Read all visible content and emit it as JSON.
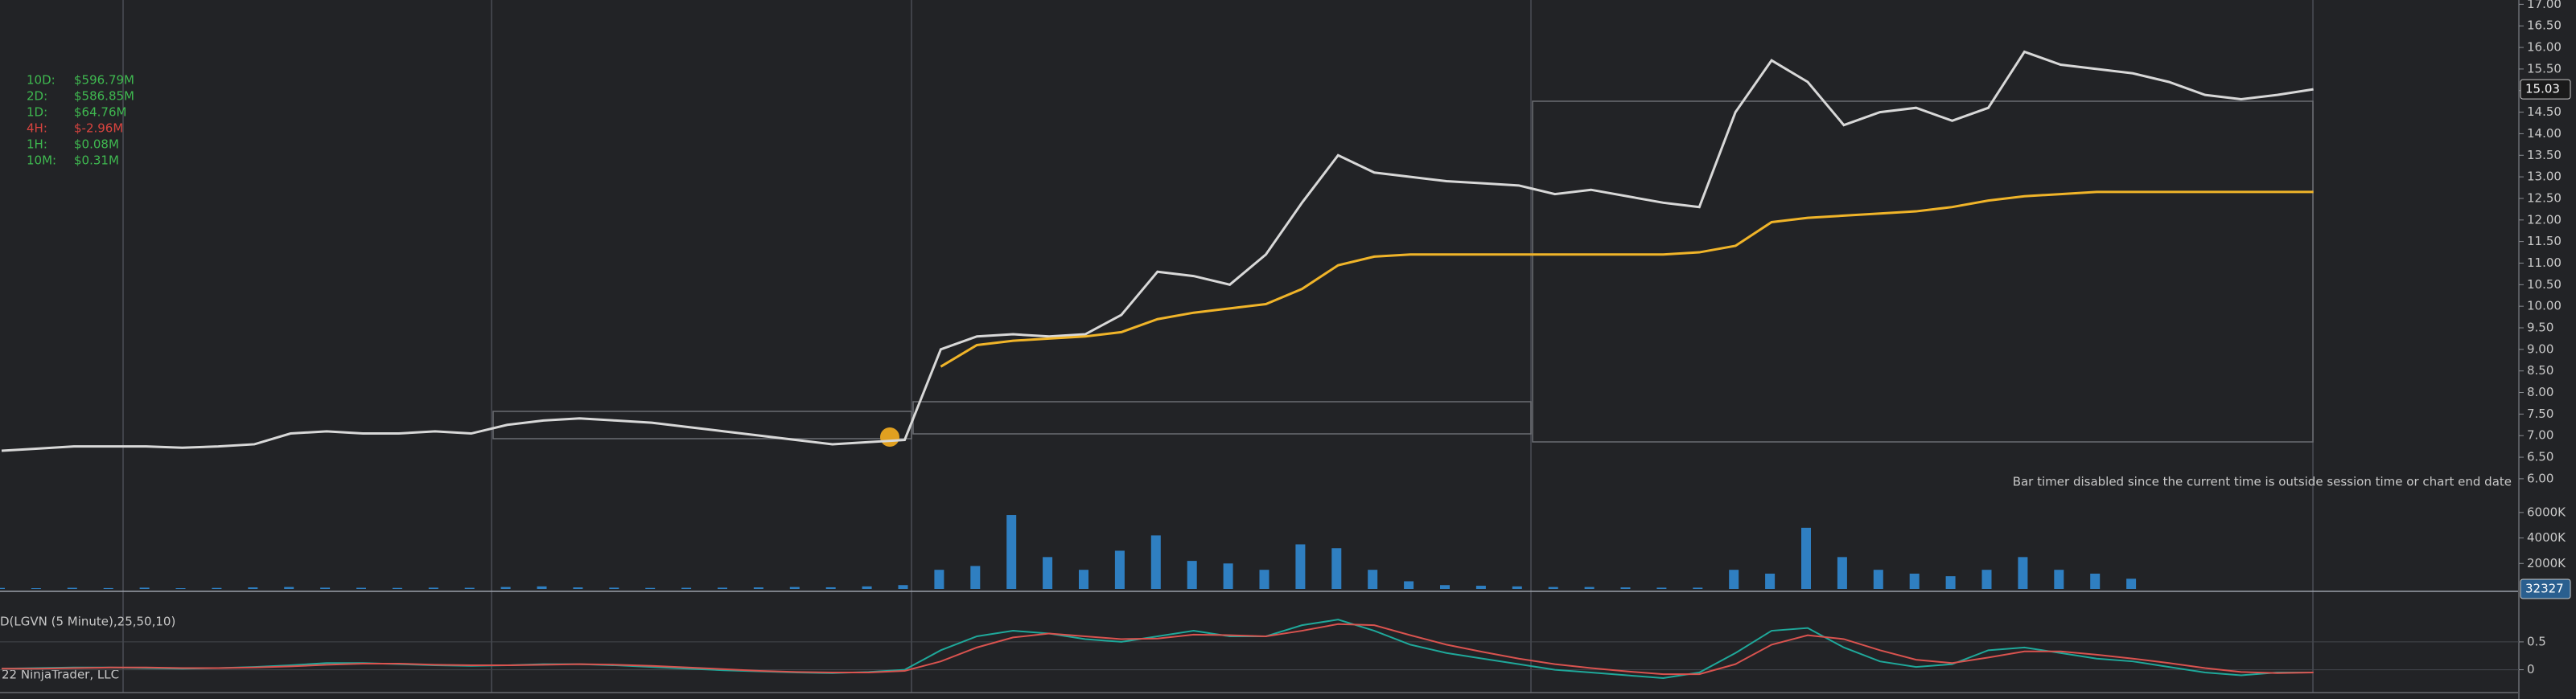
{
  "flows": [
    {
      "label": "10D:",
      "value": "$596.79M",
      "color": "#3fb950"
    },
    {
      "label": "2D:",
      "value": "$586.85M",
      "color": "#3fb950"
    },
    {
      "label": "1D:",
      "value": "$64.76M",
      "color": "#3fb950"
    },
    {
      "label": "4H:",
      "value": "$-2.96M",
      "color": "#d9443f"
    },
    {
      "label": "1H:",
      "value": "$0.08M",
      "color": "#3fb950"
    },
    {
      "label": "10M:",
      "value": "$0.31M",
      "color": "#3fb950"
    }
  ],
  "footer": "22 NinjaTrader, LLC",
  "chart_data": [
    {
      "type": "line",
      "annotation": "Bar timer disabled since the current time is outside session time or chart end date",
      "last_value": 15.03,
      "categories": [
        null,
        null,
        null,
        null,
        null,
        null,
        null,
        null,
        null,
        null,
        null,
        null,
        null,
        null,
        null,
        null,
        null,
        null,
        null,
        null,
        null,
        null,
        null,
        null,
        null,
        null,
        null,
        null,
        null,
        null,
        null,
        null,
        null,
        null,
        null,
        null,
        null,
        null,
        null,
        null,
        null,
        null,
        null,
        null,
        null,
        null,
        null,
        null,
        null,
        null,
        null,
        null,
        null,
        null,
        null,
        null,
        null,
        null,
        null,
        null,
        null,
        null,
        null,
        null,
        null
      ],
      "series": [
        {
          "color": "#d8d8d8",
          "values": [
            6.65,
            6.7,
            6.75,
            6.75,
            6.75,
            6.72,
            6.75,
            6.8,
            7.05,
            7.1,
            7.05,
            7.05,
            7.1,
            7.05,
            7.25,
            7.35,
            7.4,
            7.35,
            7.3,
            7.2,
            7.1,
            7.0,
            6.9,
            6.8,
            6.85,
            6.9,
            9.0,
            9.3,
            9.35,
            9.3,
            9.35,
            9.8,
            10.8,
            10.7,
            10.5,
            11.2,
            12.4,
            13.5,
            13.1,
            13.0,
            12.9,
            12.85,
            12.8,
            12.6,
            12.7,
            12.55,
            12.4,
            12.3,
            14.5,
            15.7,
            15.2,
            14.2,
            14.5,
            14.6,
            14.3,
            14.6,
            15.9,
            15.6,
            15.5,
            15.4,
            15.2,
            14.9,
            14.8,
            14.9,
            15.03
          ]
        },
        {
          "color": "#f0b429",
          "values": [
            null,
            null,
            null,
            null,
            null,
            null,
            null,
            null,
            null,
            null,
            null,
            null,
            null,
            null,
            null,
            null,
            null,
            null,
            null,
            null,
            null,
            null,
            null,
            null,
            null,
            null,
            8.6,
            9.1,
            9.2,
            9.25,
            9.3,
            9.4,
            9.7,
            9.85,
            9.95,
            10.05,
            10.4,
            10.95,
            11.15,
            11.2,
            11.2,
            11.2,
            11.2,
            11.2,
            11.2,
            11.2,
            11.2,
            11.25,
            11.4,
            11.95,
            12.05,
            12.1,
            12.15,
            12.2,
            12.3,
            12.45,
            12.55,
            12.6,
            12.65,
            12.65,
            12.65,
            12.65,
            12.65,
            12.65,
            12.65
          ]
        }
      ],
      "ylim": [
        5.7,
        17.1
      ],
      "yticks": [
        {
          "value": 6,
          "label": "6.00"
        },
        {
          "value": 6.5,
          "label": "6.50"
        },
        {
          "value": 7,
          "label": "7.00"
        },
        {
          "value": 7.5,
          "label": "7.50"
        },
        {
          "value": 8,
          "label": "8.00"
        },
        {
          "value": 8.5,
          "label": "8.50"
        },
        {
          "value": 9,
          "label": "9.00"
        },
        {
          "value": 9.5,
          "label": "9.50"
        },
        {
          "value": 10,
          "label": "10.00"
        },
        {
          "value": 10.5,
          "label": "10.50"
        },
        {
          "value": 11,
          "label": "11.00"
        },
        {
          "value": 11.5,
          "label": "11.50"
        },
        {
          "value": 12,
          "label": "12.00"
        },
        {
          "value": 12.5,
          "label": "12.50"
        },
        {
          "value": 13,
          "label": "13.00"
        },
        {
          "value": 13.5,
          "label": "13.50"
        },
        {
          "value": 14,
          "label": "14.00"
        },
        {
          "value": 14.5,
          "label": "14.50"
        },
        {
          "value": 15,
          "label": "15.00"
        },
        {
          "value": 15.5,
          "label": "15.50"
        },
        {
          "value": 16,
          "label": "16.00"
        },
        {
          "value": 16.5,
          "label": "16.50"
        },
        {
          "value": 17,
          "label": "17.00"
        }
      ]
    },
    {
      "type": "bar",
      "last_value": 32327,
      "color": "#2f7fc1",
      "categories": [
        null,
        null,
        null,
        null,
        null,
        null,
        null,
        null,
        null,
        null,
        null,
        null,
        null,
        null,
        null,
        null,
        null,
        null,
        null,
        null,
        null,
        null,
        null,
        null,
        null,
        null,
        null,
        null,
        null,
        null,
        null,
        null,
        null,
        null,
        null,
        null,
        null,
        null,
        null,
        null,
        null,
        null,
        null,
        null,
        null,
        null,
        null,
        null,
        null,
        null,
        null,
        null,
        null,
        null,
        null,
        null,
        null,
        null,
        null,
        null,
        null,
        null,
        null,
        null,
        null
      ],
      "values": [
        80,
        60,
        90,
        70,
        100,
        60,
        80,
        120,
        150,
        100,
        90,
        80,
        100,
        90,
        150,
        200,
        120,
        100,
        80,
        90,
        100,
        120,
        150,
        130,
        200,
        300,
        1500,
        1800,
        5800,
        2500,
        1500,
        3000,
        4200,
        2200,
        2000,
        1500,
        3500,
        3200,
        1500,
        600,
        300,
        250,
        200,
        150,
        150,
        120,
        100,
        100,
        1500,
        1200,
        4800,
        2500,
        1500,
        1200,
        1000,
        1500,
        2500,
        1500,
        1200,
        800,
        0,
        0,
        0,
        0,
        0
      ],
      "ylim": [
        0,
        7000
      ],
      "yticks": [
        {
          "value": 2000,
          "label": "2000K"
        },
        {
          "value": 4000,
          "label": "4000K"
        },
        {
          "value": 6000,
          "label": "6000K"
        }
      ]
    },
    {
      "type": "line",
      "title": "D(LGVN (5 Minute),25,50,10)",
      "categories": [
        null,
        null,
        null,
        null,
        null,
        null,
        null,
        null,
        null,
        null,
        null,
        null,
        null,
        null,
        null,
        null,
        null,
        null,
        null,
        null,
        null,
        null,
        null,
        null,
        null,
        null,
        null,
        null,
        null,
        null,
        null,
        null,
        null,
        null,
        null,
        null,
        null,
        null,
        null,
        null,
        null,
        null,
        null,
        null,
        null,
        null,
        null,
        null,
        null,
        null,
        null,
        null,
        null,
        null,
        null,
        null,
        null,
        null,
        null,
        null,
        null,
        null,
        null,
        null,
        null
      ],
      "series": [
        {
          "color": "#1fa89a",
          "values": [
            0.02,
            0.03,
            0.04,
            0.04,
            0.03,
            0.02,
            0.03,
            0.05,
            0.08,
            0.12,
            0.12,
            0.1,
            0.08,
            0.07,
            0.08,
            0.1,
            0.1,
            0.08,
            0.05,
            0.02,
            -0.01,
            -0.03,
            -0.05,
            -0.06,
            -0.04,
            0.0,
            0.35,
            0.6,
            0.7,
            0.65,
            0.55,
            0.5,
            0.6,
            0.7,
            0.6,
            0.6,
            0.8,
            0.9,
            0.7,
            0.45,
            0.3,
            0.2,
            0.1,
            0.0,
            -0.05,
            -0.1,
            -0.15,
            -0.05,
            0.3,
            0.7,
            0.75,
            0.4,
            0.15,
            0.05,
            0.1,
            0.35,
            0.4,
            0.3,
            0.2,
            0.15,
            0.05,
            -0.05,
            -0.1,
            -0.05,
            -0.05
          ]
        },
        {
          "color": "#d9534f",
          "values": [
            0.02,
            0.02,
            0.03,
            0.04,
            0.04,
            0.03,
            0.03,
            0.04,
            0.06,
            0.09,
            0.11,
            0.11,
            0.09,
            0.08,
            0.08,
            0.09,
            0.1,
            0.09,
            0.07,
            0.04,
            0.01,
            -0.02,
            -0.04,
            -0.05,
            -0.05,
            -0.02,
            0.15,
            0.4,
            0.58,
            0.65,
            0.6,
            0.55,
            0.56,
            0.63,
            0.62,
            0.6,
            0.7,
            0.82,
            0.8,
            0.62,
            0.45,
            0.32,
            0.2,
            0.1,
            0.03,
            -0.03,
            -0.08,
            -0.08,
            0.1,
            0.45,
            0.62,
            0.55,
            0.35,
            0.18,
            0.12,
            0.22,
            0.33,
            0.33,
            0.27,
            0.2,
            0.12,
            0.03,
            -0.04,
            -0.06,
            -0.05
          ]
        }
      ],
      "ylim": [
        -0.41,
        1.35
      ],
      "yticks": [
        0,
        0.5
      ]
    }
  ]
}
